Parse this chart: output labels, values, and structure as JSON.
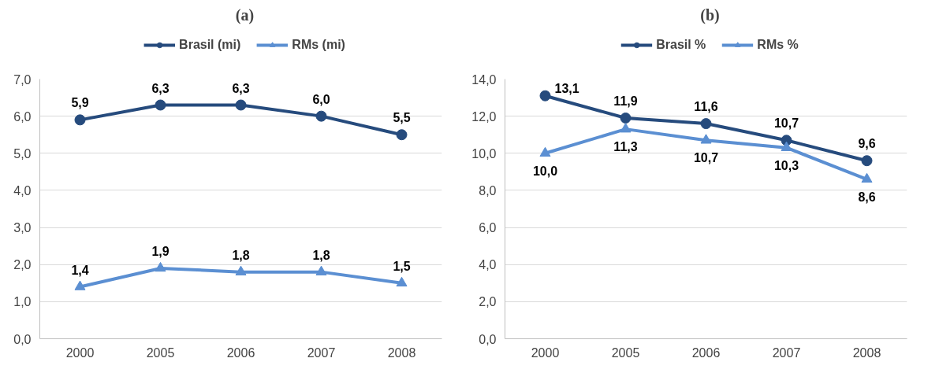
{
  "chart_data": [
    {
      "type": "line",
      "title": "(a)",
      "categories": [
        "2000",
        "2005",
        "2006",
        "2007",
        "2008"
      ],
      "series": [
        {
          "name": "Brasil (mi)",
          "color": "#264b7d",
          "marker": "circle",
          "values": [
            5.9,
            6.3,
            6.3,
            6.0,
            5.5
          ],
          "value_labels": [
            "5,9",
            "6,3",
            "6,3",
            "6,0",
            "5,5"
          ]
        },
        {
          "name": "RMs (mi)",
          "color": "#5b8fd2",
          "marker": "triangle",
          "values": [
            1.4,
            1.9,
            1.8,
            1.8,
            1.5
          ],
          "value_labels": [
            "1,4",
            "1,9",
            "1,8",
            "1,8",
            "1,5"
          ]
        }
      ],
      "ylim": [
        0,
        7
      ],
      "yticks": [
        {
          "value": 0,
          "label": "0,0"
        },
        {
          "value": 1,
          "label": "1,0"
        },
        {
          "value": 2,
          "label": "2,0"
        },
        {
          "value": 3,
          "label": "3,0"
        },
        {
          "value": 4,
          "label": "4,0"
        },
        {
          "value": 5,
          "label": "5,0"
        },
        {
          "value": 6,
          "label": "6,0"
        },
        {
          "value": 7,
          "label": "7,0"
        }
      ],
      "grid": "y",
      "legend": "top"
    },
    {
      "type": "line",
      "title": "(b)",
      "categories": [
        "2000",
        "2005",
        "2006",
        "2007",
        "2008"
      ],
      "series": [
        {
          "name": "Brasil %",
          "color": "#264b7d",
          "marker": "circle",
          "values": [
            13.1,
            11.9,
            11.6,
            10.7,
            9.6
          ],
          "value_labels": [
            "13,1",
            "11,9",
            "11,6",
            "10,7",
            "9,6"
          ]
        },
        {
          "name": "RMs %",
          "color": "#5b8fd2",
          "marker": "triangle",
          "values": [
            10.0,
            11.3,
            10.7,
            10.3,
            8.6
          ],
          "value_labels": [
            "10,0",
            "11,3",
            "10,7",
            "10,3",
            "8,6"
          ]
        }
      ],
      "ylim": [
        0,
        14
      ],
      "yticks": [
        {
          "value": 0,
          "label": "0,0"
        },
        {
          "value": 2,
          "label": "2,0"
        },
        {
          "value": 4,
          "label": "4,0"
        },
        {
          "value": 6,
          "label": "6,0"
        },
        {
          "value": 8,
          "label": "8,0"
        },
        {
          "value": 10,
          "label": "10,0"
        },
        {
          "value": 12,
          "label": "12,0"
        },
        {
          "value": 14,
          "label": "14,0"
        }
      ],
      "grid": "y",
      "legend": "top"
    }
  ]
}
